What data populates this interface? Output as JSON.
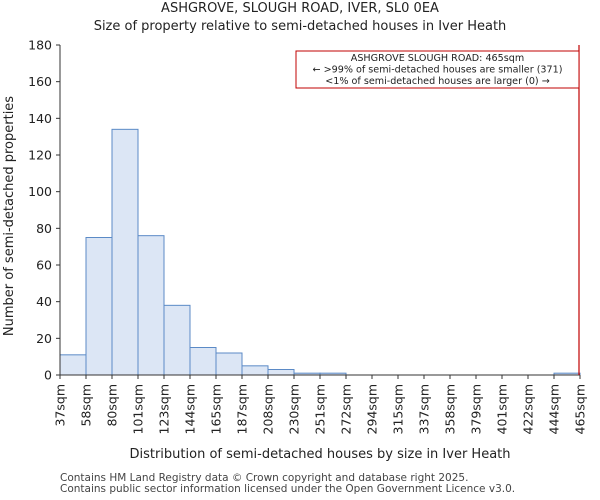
{
  "chart_data": {
    "type": "bar",
    "title": "ASHGROVE, SLOUGH ROAD, IVER, SL0 0EA",
    "subtitle": "Size of property relative to semi-detached houses in Iver Heath",
    "xlabel": "Distribution of semi-detached houses by size in Iver Heath",
    "ylabel": "Number of semi-detached properties",
    "ylim": [
      0,
      180
    ],
    "yticks": [
      0,
      20,
      40,
      60,
      80,
      100,
      120,
      140,
      160,
      180
    ],
    "bin_edges": [
      "37sqm",
      "58sqm",
      "80sqm",
      "101sqm",
      "123sqm",
      "144sqm",
      "165sqm",
      "187sqm",
      "208sqm",
      "230sqm",
      "251sqm",
      "272sqm",
      "294sqm",
      "315sqm",
      "337sqm",
      "358sqm",
      "379sqm",
      "401sqm",
      "422sqm",
      "444sqm",
      "465sqm"
    ],
    "values": [
      11,
      75,
      134,
      76,
      38,
      15,
      12,
      5,
      3,
      1,
      1,
      0,
      0,
      0,
      0,
      0,
      0,
      0,
      0,
      1
    ],
    "marker_label": "465sqm",
    "annotation": [
      "ASHGROVE SLOUGH ROAD: 465sqm",
      "← >99% of semi-detached houses are smaller (371)",
      "<1% of semi-detached houses are larger (0) →"
    ],
    "colors": {
      "bar_fill": "#dce6f5",
      "bar_edge": "#5b8ac6",
      "marker": "#c00000",
      "axis": "#333333"
    }
  },
  "footer": {
    "line1": "Contains HM Land Registry data © Crown copyright and database right 2025.",
    "line2": "Contains public sector information licensed under the Open Government Licence v3.0."
  }
}
